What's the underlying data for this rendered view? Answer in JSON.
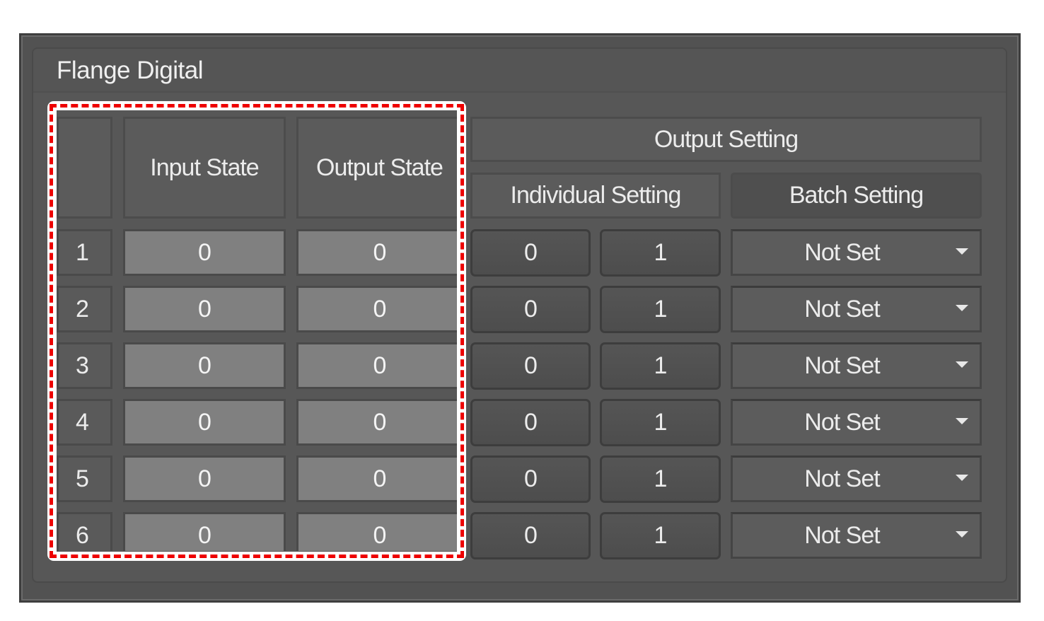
{
  "panel": {
    "title": "Flange Digital",
    "headers": {
      "input_state": "Input State",
      "output_state": "Output State",
      "output_setting": "Output Setting",
      "individual_setting": "Individual Setting",
      "batch_setting": "Batch Setting"
    },
    "rows": [
      {
        "index": "1",
        "input_state": "0",
        "output_state": "0",
        "individual_off": "0",
        "individual_on": "1",
        "batch": "Not Set"
      },
      {
        "index": "2",
        "input_state": "0",
        "output_state": "0",
        "individual_off": "0",
        "individual_on": "1",
        "batch": "Not Set"
      },
      {
        "index": "3",
        "input_state": "0",
        "output_state": "0",
        "individual_off": "0",
        "individual_on": "1",
        "batch": "Not Set"
      },
      {
        "index": "4",
        "input_state": "0",
        "output_state": "0",
        "individual_off": "0",
        "individual_on": "1",
        "batch": "Not Set"
      },
      {
        "index": "5",
        "input_state": "0",
        "output_state": "0",
        "individual_off": "0",
        "individual_on": "1",
        "batch": "Not Set"
      },
      {
        "index": "6",
        "input_state": "0",
        "output_state": "0",
        "individual_off": "0",
        "individual_on": "1",
        "batch": "Not Set"
      }
    ]
  },
  "highlight": {
    "color": "#ee0000",
    "frame_color": "#ffffff"
  },
  "icons": {
    "dropdown": "caret-down-icon"
  }
}
